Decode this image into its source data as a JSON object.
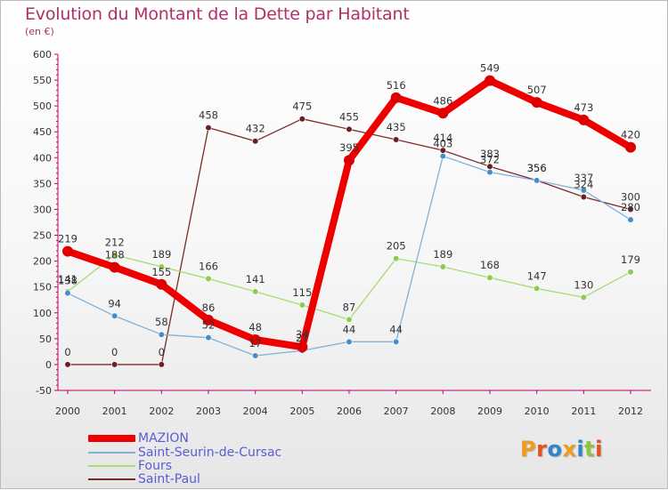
{
  "header": {
    "title": "Evolution du Montant de la Dette par Habitant",
    "subtitle": "(en €)"
  },
  "logo": {
    "text": "Proxiti",
    "colors": [
      "#f29a1b",
      "#e84f1c",
      "#2e86c8",
      "#f29a1b",
      "#2e86c8",
      "#8cc43f",
      "#e84f1c"
    ]
  },
  "chart_data": {
    "type": "line",
    "x": [
      "2000",
      "2001",
      "2002",
      "2003",
      "2004",
      "2005",
      "2006",
      "2007",
      "2008",
      "2009",
      "2010",
      "2011",
      "2012"
    ],
    "ylim": [
      -50,
      600
    ],
    "yticks": [
      -50,
      0,
      50,
      100,
      150,
      200,
      250,
      300,
      350,
      400,
      450,
      500,
      550,
      600
    ],
    "grid": false,
    "legend_position": "bottom-left",
    "series": [
      {
        "name": "Saint-Paul",
        "color": "#7b2a2a",
        "marker": "#6b1f1f",
        "values": [
          0,
          0,
          0,
          458,
          432,
          475,
          455,
          435,
          414,
          383,
          356,
          324,
          300
        ],
        "labels": [
          "0",
          "0",
          "0",
          "458",
          "432",
          "475",
          "455",
          "435",
          "414",
          "383",
          "356",
          "324",
          "300"
        ]
      },
      {
        "name": "Fours",
        "color": "#a6dc72",
        "marker": "#8ccc4e",
        "values": [
          141,
          212,
          189,
          166,
          141,
          115,
          87,
          205,
          189,
          168,
          147,
          130,
          179
        ],
        "labels": [
          "141",
          "212",
          "189",
          "166",
          "141",
          "115",
          "87",
          "205",
          "189",
          "168",
          "147",
          "130",
          "179"
        ]
      },
      {
        "name": "Saint-Seurin-de-Cursac",
        "color": "#7fb1da",
        "marker": "#4a8cc8",
        "values": [
          138,
          94,
          58,
          52,
          17,
          27,
          44,
          44,
          403,
          372,
          356,
          337,
          280
        ],
        "labels": [
          "138",
          "94",
          "58",
          "52",
          "17",
          "27",
          "44",
          "44",
          "403",
          "372",
          "356",
          "337",
          "280"
        ]
      },
      {
        "name": "MAZION",
        "color": "#ee0000",
        "marker": "#dd0000",
        "values": [
          219,
          188,
          155,
          86,
          48,
          34,
          395,
          516,
          486,
          549,
          507,
          473,
          420
        ],
        "labels": [
          "219",
          "188",
          "155",
          "86",
          "48",
          "34",
          "395",
          "516",
          "486",
          "549",
          "507",
          "473",
          "420"
        ]
      }
    ],
    "legend_order": [
      "MAZION",
      "Saint-Seurin-de-Cursac",
      "Fours",
      "Saint-Paul"
    ]
  }
}
